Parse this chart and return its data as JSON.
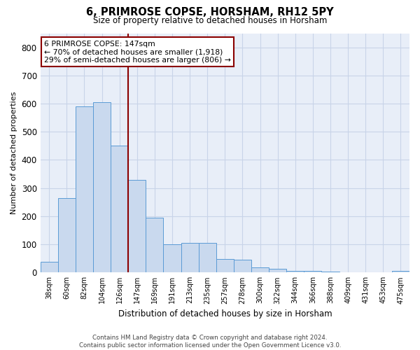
{
  "title": "6, PRIMROSE COPSE, HORSHAM, RH12 5PY",
  "subtitle": "Size of property relative to detached houses in Horsham",
  "xlabel": "Distribution of detached houses by size in Horsham",
  "ylabel": "Number of detached properties",
  "footer_line1": "Contains HM Land Registry data © Crown copyright and database right 2024.",
  "footer_line2": "Contains public sector information licensed under the Open Government Licence v3.0.",
  "annotation_line1": "6 PRIMROSE COPSE: 147sqm",
  "annotation_line2": "← 70% of detached houses are smaller (1,918)",
  "annotation_line3": "29% of semi-detached houses are larger (806) →",
  "bar_edge_color": "#5b9bd5",
  "bar_face_color": "#c9d9ee",
  "bar_linewidth": 0.7,
  "grid_color": "#c8d4e8",
  "background_color": "#e8eef8",
  "redline_color": "#8b0000",
  "annotation_box_edgecolor": "#8b0000",
  "annotation_box_facecolor": "white",
  "categories": [
    "38sqm",
    "60sqm",
    "82sqm",
    "104sqm",
    "126sqm",
    "147sqm",
    "169sqm",
    "191sqm",
    "213sqm",
    "235sqm",
    "257sqm",
    "278sqm",
    "300sqm",
    "322sqm",
    "344sqm",
    "366sqm",
    "388sqm",
    "409sqm",
    "431sqm",
    "453sqm",
    "475sqm"
  ],
  "values": [
    38,
    265,
    590,
    605,
    450,
    330,
    195,
    100,
    105,
    105,
    48,
    45,
    18,
    12,
    5,
    5,
    3,
    2,
    2,
    2,
    5
  ],
  "ylim": [
    0,
    850
  ],
  "yticks": [
    0,
    100,
    200,
    300,
    400,
    500,
    600,
    700,
    800
  ],
  "redline_bar_index": 5,
  "figsize": [
    6.0,
    5.0
  ],
  "dpi": 100
}
